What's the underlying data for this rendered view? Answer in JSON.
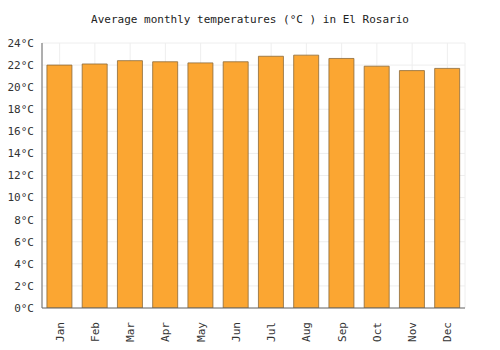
{
  "chart_data": {
    "type": "bar",
    "title": "Average monthly temperatures (°C ) in El Rosario",
    "categories": [
      "Jan",
      "Feb",
      "Mar",
      "Apr",
      "May",
      "Jun",
      "Jul",
      "Aug",
      "Sep",
      "Oct",
      "Nov",
      "Dec"
    ],
    "values": [
      22.0,
      22.1,
      22.4,
      22.3,
      22.2,
      22.3,
      22.8,
      22.9,
      22.6,
      21.9,
      21.5,
      21.7
    ],
    "color": "#fba632",
    "ylim": [
      0,
      24
    ],
    "yticks": [
      {
        "value": 0,
        "label": "0°C"
      },
      {
        "value": 2,
        "label": "2°C"
      },
      {
        "value": 4,
        "label": "4°C"
      },
      {
        "value": 6,
        "label": "6°C"
      },
      {
        "value": 8,
        "label": "8°C"
      },
      {
        "value": 10,
        "label": "10°C"
      },
      {
        "value": 12,
        "label": "12°C"
      },
      {
        "value": 14,
        "label": "14°C"
      },
      {
        "value": 16,
        "label": "16°C"
      },
      {
        "value": 18,
        "label": "18°C"
      },
      {
        "value": 20,
        "label": "20°C"
      },
      {
        "value": 22,
        "label": "22°C"
      },
      {
        "value": 24,
        "label": "24°C"
      }
    ],
    "grid": true
  }
}
